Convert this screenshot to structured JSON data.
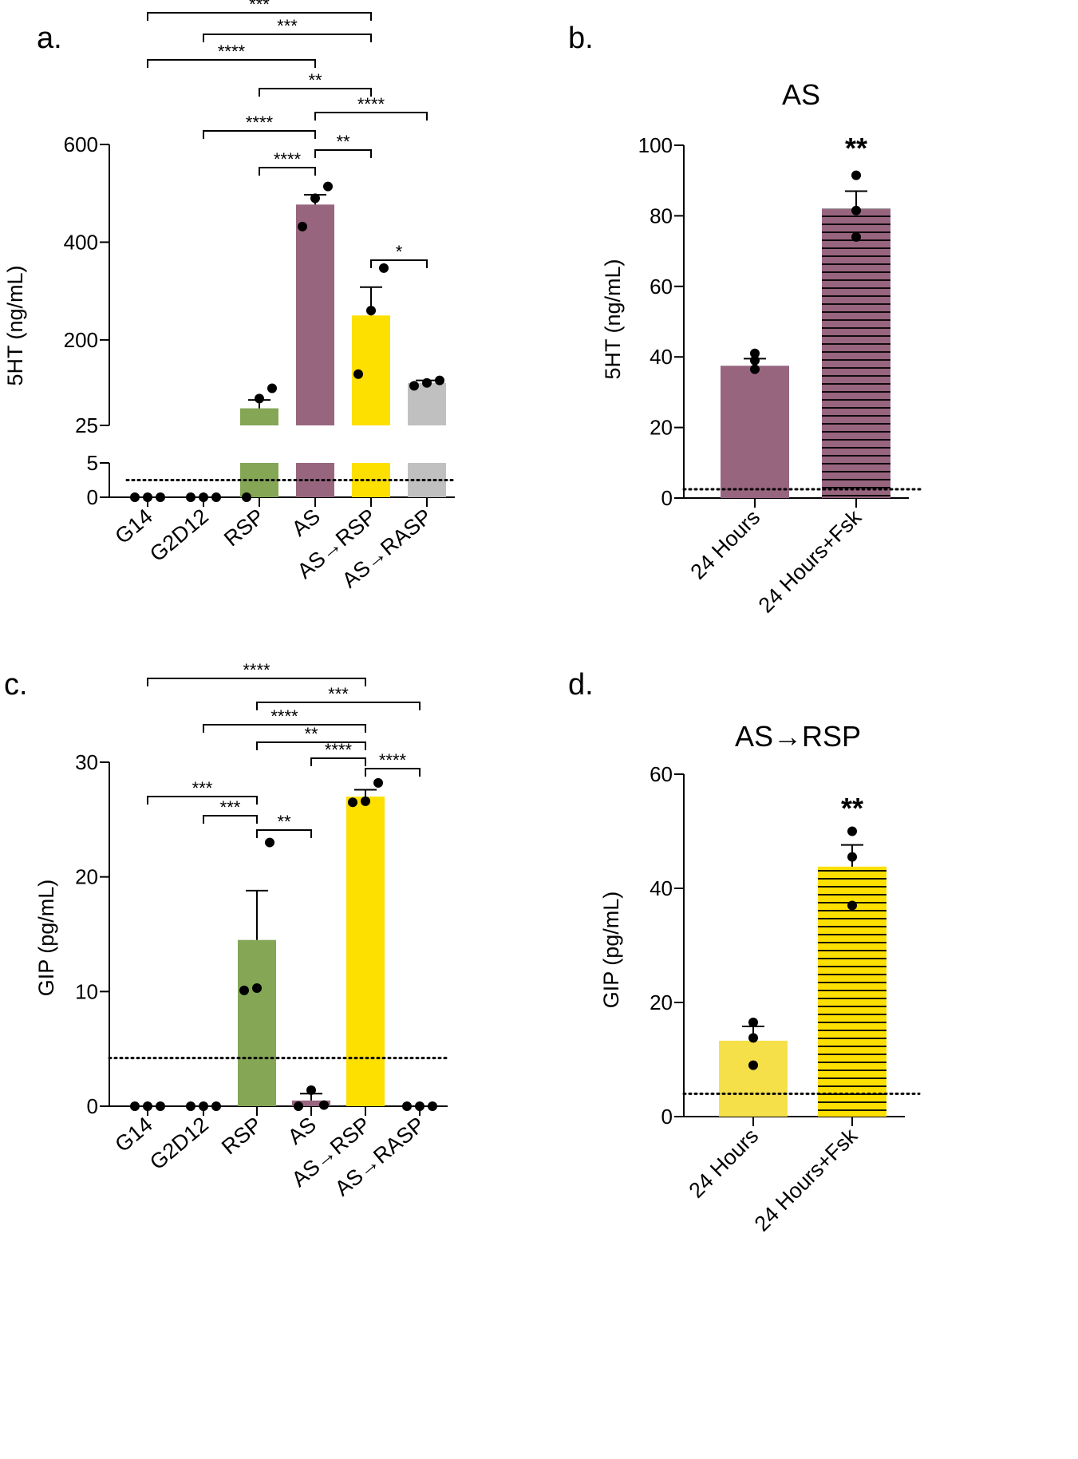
{
  "figure": {
    "colors": {
      "G14": "#ffffff",
      "G2D12": "#ffffff",
      "RSP": "#84a655",
      "AS": "#98657f",
      "AS→RSP": "#fddf00",
      "AS→RASP": "#c0c0c0",
      "AS_stripe": "#98657f",
      "ASRSP_24h_light": "#f6e04a",
      "ASRSP_stripe": "#fddf00",
      "stripe_line": "#000000",
      "dot": "#000000"
    }
  },
  "chart_data": [
    {
      "id": "a",
      "panel_label": "a.",
      "type": "bar",
      "title": "",
      "ylabel": "5HT (ng/mL)",
      "categories": [
        "G14",
        "G2D12",
        "RSP",
        "AS",
        "AS→RSP",
        "AS→RASP"
      ],
      "values": [
        0,
        0,
        60,
        477,
        250,
        112
      ],
      "errors": [
        0,
        0,
        17,
        20,
        58,
        5
      ],
      "points": [
        [
          0,
          0,
          0
        ],
        [
          0,
          0,
          0
        ],
        [
          0,
          80,
          101
        ],
        [
          432,
          490,
          514
        ],
        [
          130,
          260,
          347
        ],
        [
          106,
          112,
          117
        ]
      ],
      "broken_axis": {
        "lower_ylim": [
          0,
          5
        ],
        "lower_ticks": [
          0,
          5
        ],
        "upper_ylim": [
          25,
          600
        ],
        "upper_ticks": [
          25,
          200,
          400,
          600
        ]
      },
      "dotted_line_y": 2.5,
      "significance": [
        {
          "from": "G14",
          "to": "AS→RSP",
          "label": "***"
        },
        {
          "from": "G2D12",
          "to": "AS→RSP",
          "label": "***"
        },
        {
          "from": "G14",
          "to": "AS",
          "label": "****"
        },
        {
          "from": "RSP",
          "to": "AS→RSP",
          "label": "**"
        },
        {
          "from": "AS",
          "to": "AS→RASP",
          "label": "****"
        },
        {
          "from": "G2D12",
          "to": "AS",
          "label": "****"
        },
        {
          "from": "AS",
          "to": "AS→RSP",
          "label": "**"
        },
        {
          "from": "RSP",
          "to": "AS",
          "label": "****"
        },
        {
          "from": "AS→RSP",
          "to": "AS→RASP",
          "label": "*"
        }
      ]
    },
    {
      "id": "b",
      "panel_label": "b.",
      "type": "bar",
      "title": "AS",
      "ylabel": "5HT (ng/mL)",
      "categories": [
        "24 Hours",
        "24 Hours+Fsk"
      ],
      "values": [
        37.5,
        82
      ],
      "errors": [
        2,
        5
      ],
      "points": [
        [
          41,
          39,
          36.5
        ],
        [
          91.5,
          81.5,
          74
        ]
      ],
      "striped": [
        false,
        true
      ],
      "ylim": [
        0,
        100
      ],
      "ticks": [
        0,
        20,
        40,
        60,
        80,
        100
      ],
      "dotted_line_y": 2.5,
      "annotations": [
        {
          "category": "24 Hours+Fsk",
          "label": "**"
        }
      ]
    },
    {
      "id": "c",
      "panel_label": "c.",
      "type": "bar",
      "title": "",
      "ylabel": "GIP (pg/mL)",
      "categories": [
        "G14",
        "G2D12",
        "RSP",
        "AS",
        "AS→RSP",
        "AS→RASP"
      ],
      "values": [
        0,
        0,
        14.5,
        0.5,
        27,
        0
      ],
      "errors": [
        0,
        0,
        4.3,
        0.6,
        0.6,
        0
      ],
      "points": [
        [
          0,
          0,
          0
        ],
        [
          0,
          0,
          0
        ],
        [
          10.1,
          10.3,
          23
        ],
        [
          0,
          1.4,
          0.1
        ],
        [
          26.5,
          26.6,
          28.2
        ],
        [
          0,
          0,
          0
        ]
      ],
      "ylim": [
        0,
        30
      ],
      "ticks": [
        0,
        10,
        20,
        30
      ],
      "dotted_line_y": 4.2,
      "significance": [
        {
          "from": "G14",
          "to": "AS→RSP",
          "label": "****"
        },
        {
          "from": "RSP",
          "to": "AS→RASP",
          "label": "***"
        },
        {
          "from": "G2D12",
          "to": "AS→RSP",
          "label": "****"
        },
        {
          "from": "RSP",
          "to": "AS→RSP",
          "label": "**"
        },
        {
          "from": "AS",
          "to": "AS→RSP",
          "label": "****"
        },
        {
          "from": "AS→RSP",
          "to": "AS→RASP",
          "label": "****"
        },
        {
          "from": "G14",
          "to": "RSP",
          "label": "***"
        },
        {
          "from": "G2D12",
          "to": "RSP",
          "label": "***"
        },
        {
          "from": "RSP",
          "to": "AS",
          "label": "**"
        }
      ]
    },
    {
      "id": "d",
      "panel_label": "d.",
      "type": "bar",
      "title": "AS→RSP",
      "ylabel": "GIP (pg/mL)",
      "categories": [
        "24 Hours",
        "24 Hours+Fsk"
      ],
      "values": [
        13.3,
        43.8
      ],
      "errors": [
        2.5,
        3.8
      ],
      "points": [
        [
          16.5,
          13.8,
          9
        ],
        [
          50,
          45.5,
          37
        ]
      ],
      "striped": [
        false,
        true
      ],
      "ylim": [
        0,
        60
      ],
      "ticks": [
        0,
        20,
        40,
        60
      ],
      "dotted_line_y": 4,
      "annotations": [
        {
          "category": "24 Hours+Fsk",
          "label": "**"
        }
      ]
    }
  ]
}
